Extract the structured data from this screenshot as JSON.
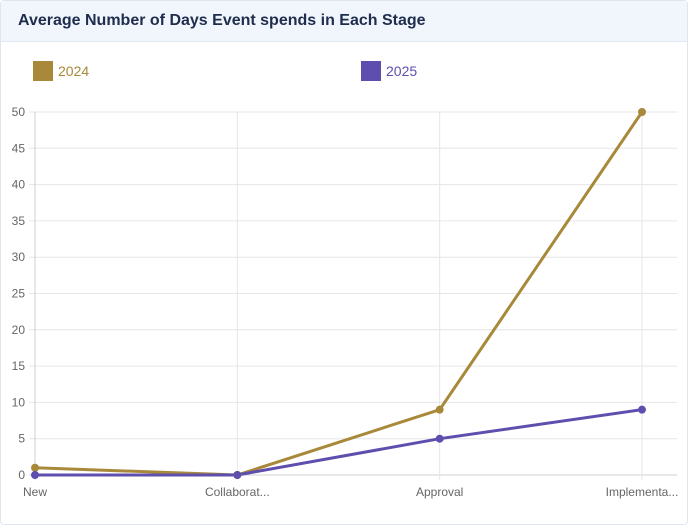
{
  "card": {
    "title": "Average Number of Days Event spends in Each Stage"
  },
  "chart_data": {
    "type": "line",
    "title": "Average Number of Days Event spends in Each Stage",
    "categories": [
      "New",
      "Collaborat...",
      "Approval",
      "Implementa..."
    ],
    "series": [
      {
        "name": "2024",
        "color": "#a8893a",
        "values": [
          1,
          0,
          9,
          50
        ]
      },
      {
        "name": "2025",
        "color": "#5e4fae",
        "values": [
          0,
          0,
          5,
          9
        ]
      }
    ],
    "ylim": [
      0,
      50
    ],
    "yticks": [
      0,
      5,
      10,
      15,
      20,
      25,
      30,
      35,
      40,
      45,
      50
    ],
    "grid": true,
    "legend_position": "top"
  }
}
